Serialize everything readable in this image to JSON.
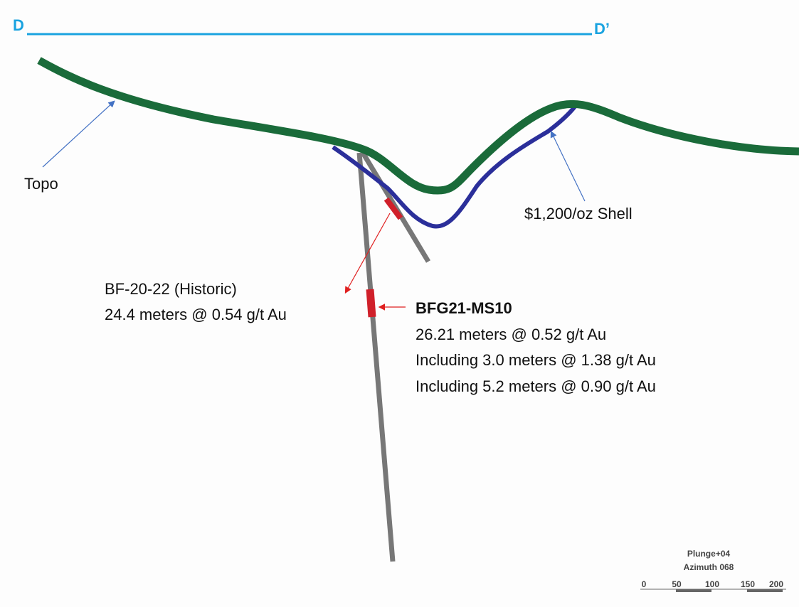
{
  "section": {
    "start": "D",
    "end": "D’"
  },
  "labels": {
    "topo": "Topo",
    "shell": "$1,200/oz Shell"
  },
  "historic": {
    "hole": "BF-20-22 (Historic)",
    "interval": "24.4 meters @ 0.54 g/t Au"
  },
  "new_hole": {
    "hole": "BFG21-MS10",
    "lines": [
      "26.21 meters @ 0.52 g/t Au",
      "Including 3.0 meters @ 1.38 g/t Au",
      "Including 5.2 meters @ 0.90 g/t Au"
    ]
  },
  "orientation": {
    "plunge": "Plunge+04",
    "azimuth": "Azimuth 068"
  },
  "scale": {
    "labels": [
      0,
      50,
      100,
      150,
      200
    ]
  }
}
